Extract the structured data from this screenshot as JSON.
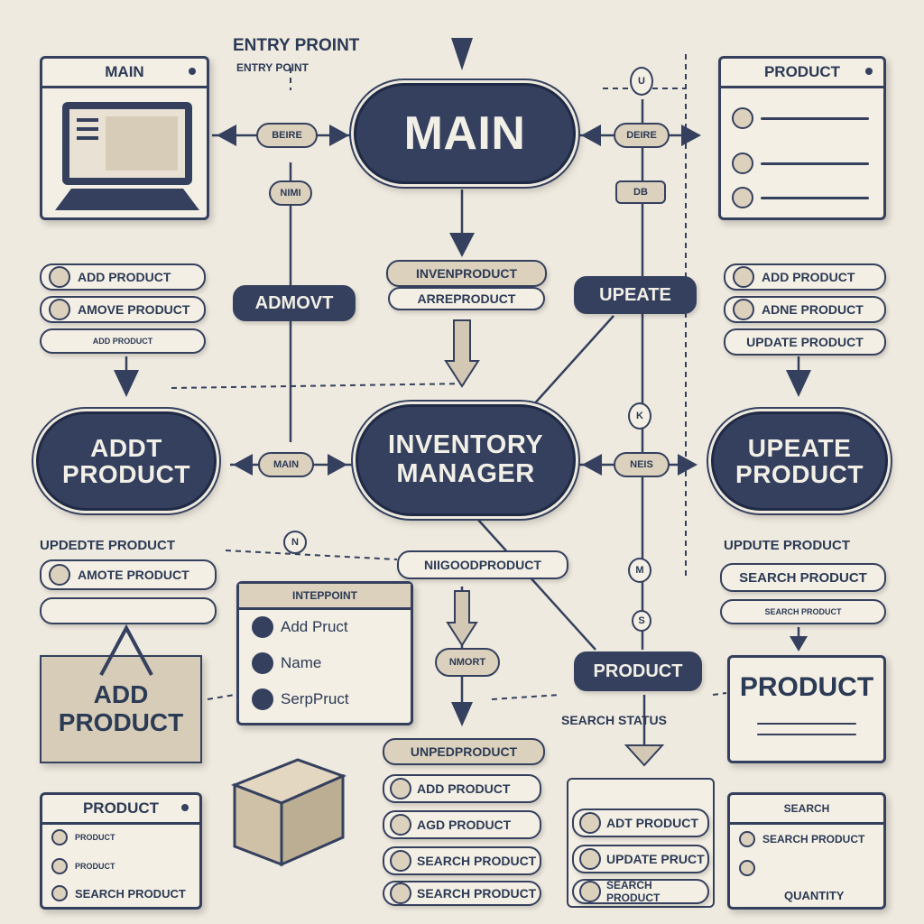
{
  "top": {
    "entry_point": "ENTRY PROINT",
    "entry_point_sub": "ENTRY POINT"
  },
  "main_oval": "MAIN",
  "inventory_oval": {
    "line1": "INVENTORY",
    "line2": "MANAGER"
  },
  "add_oval": {
    "line1": "ADDT",
    "line2": "PRODUCT"
  },
  "update_oval": {
    "line1": "UPEATE",
    "line2": "PRODUCT"
  },
  "tags": {
    "left_top": "BEIRE",
    "left_mid": "MAIN",
    "right_top": "DEIRE",
    "right_mid": "NEIS",
    "num_left": "NIMI",
    "db": "DB",
    "top_circle": "U",
    "circle_k": "K",
    "circle_n": "N",
    "circle_m": "M",
    "circle_s": "S",
    "nmort": "NMORT"
  },
  "pills": {
    "admovt": "ADMOVT",
    "update": "UPEATE",
    "inv_product": "INVENPRODUCT",
    "arre_product": "ARREPRODUCT",
    "niigood_product": "NIIGOODPRODUCT",
    "product": "PRODUCT"
  },
  "search_status": "SEARCH STATUS",
  "left_list_top": [
    "ADD PRODUCT",
    "AMOVE PRODUCT",
    "ADD PRODUCT"
  ],
  "right_list_top": [
    "ADD PRODUCT",
    "ADNE PRODUCT",
    "UPDATE PRODUCT"
  ],
  "left_list_mid": [
    "UPDEDTE PRODUCT",
    "AMOTE PRODUCT",
    ""
  ],
  "right_list_mid": [
    "UPDUTE PRODUCT",
    "SEARCH PRODUCT",
    "SEARCH PRODUCT"
  ],
  "main_card": {
    "title": "MAIN"
  },
  "product_card_top": {
    "title": "PRODUCT"
  },
  "add_product_box": {
    "line1": "ADD",
    "line2": "PRODUCT"
  },
  "product_box_right": {
    "title": "PRODUCT"
  },
  "entry_card": {
    "title": "INTEPPOINT",
    "items": [
      "Add Pruct",
      "Name",
      "SerpPruct"
    ]
  },
  "bottom_mid_list": {
    "title": "UNPEDPRODUCT",
    "items": [
      "ADD PRODUCT",
      "AGD PRODUCT",
      "SEARCH PRODUCT",
      "SEARCH PRODUCT"
    ]
  },
  "bottom_right_list": {
    "items": [
      "ADT PRODUCT",
      "UPDATE PRUCT",
      "SEARCH PRODUCT"
    ]
  },
  "bottom_left_card": {
    "title": "PRODUCT",
    "items": [
      "PRODUCT",
      "PRODUCT",
      "SEARCH PRODUCT"
    ]
  },
  "bottom_far_right_card": {
    "title": "SEARCH",
    "items": [
      "SEARCH PRODUCT",
      "",
      "QUANTITY"
    ]
  }
}
